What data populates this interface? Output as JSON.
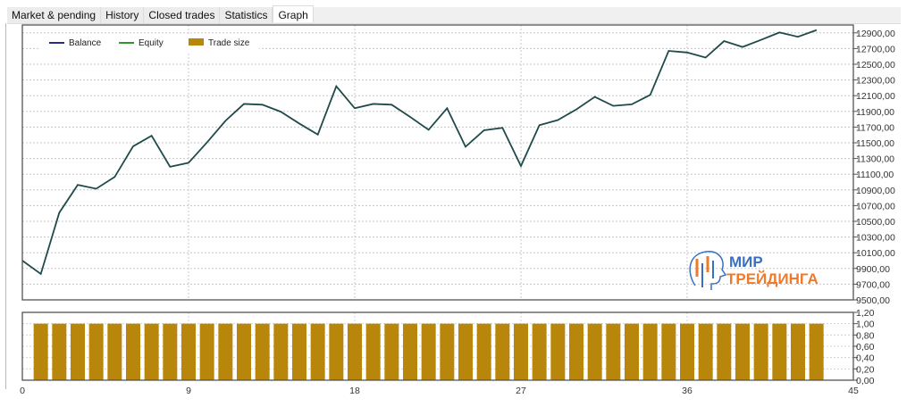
{
  "tabs": [
    {
      "label": "Market & pending"
    },
    {
      "label": "History"
    },
    {
      "label": "Closed trades"
    },
    {
      "label": "Statistics"
    },
    {
      "label": "Graph",
      "active": true
    }
  ],
  "logo": {
    "line1": "МИР",
    "line2": "ТРЕЙДИНГА"
  },
  "colors": {
    "line": "#1f4a4a",
    "balance": "#2a2a8c",
    "equity": "#2a9a2a",
    "bars": "#b8860b"
  },
  "chart_data": [
    {
      "type": "line",
      "legend": [
        {
          "name": "Balance",
          "icon": "line-marker"
        },
        {
          "name": "Equity",
          "icon": "line-marker"
        },
        {
          "name": "Trade size",
          "icon": "bar-swatch"
        }
      ],
      "legend_position": "top-left",
      "grid": true,
      "x_ticks": [
        "0",
        "9",
        "18",
        "27",
        "36",
        "45"
      ],
      "xlim": [
        0,
        45
      ],
      "ylim": [
        9500,
        13000
      ],
      "y_ticks": [
        "9500,00",
        "9700,00",
        "9900,00",
        "10100,00",
        "10300,00",
        "10500,00",
        "10700,00",
        "10900,00",
        "11100,00",
        "11300,00",
        "11500,00",
        "11700,00",
        "11900,00",
        "12100,00",
        "12300,00",
        "12500,00",
        "12700,00",
        "12900,00"
      ],
      "series": [
        {
          "name": "Balance",
          "values": [
            10000,
            9830,
            10610,
            10965,
            10915,
            11065,
            11455,
            11590,
            11195,
            11245,
            11505,
            11780,
            11995,
            11985,
            11895,
            11745,
            11605,
            12220,
            11940,
            11995,
            11985,
            11830,
            11665,
            11940,
            11450,
            11660,
            11690,
            11205,
            11725,
            11790,
            11925,
            12085,
            11970,
            11990,
            12110,
            12670,
            12650,
            12585,
            12795,
            12720,
            12810,
            12905,
            12850,
            12935
          ]
        }
      ]
    },
    {
      "type": "bar",
      "ylim": [
        0,
        1.2
      ],
      "y_ticks": [
        "0,00",
        "0,20",
        "0,40",
        "0,60",
        "0,80",
        "1,00",
        "1,20"
      ],
      "x": [
        1,
        2,
        3,
        4,
        5,
        6,
        7,
        8,
        9,
        10,
        11,
        12,
        13,
        14,
        15,
        16,
        17,
        18,
        19,
        20,
        21,
        22,
        23,
        24,
        25,
        26,
        27,
        28,
        29,
        30,
        31,
        32,
        33,
        34,
        35,
        36,
        37,
        38,
        39,
        40,
        41,
        42,
        43
      ],
      "values": [
        1,
        1,
        1,
        1,
        1,
        1,
        1,
        1,
        1,
        1,
        1,
        1,
        1,
        1,
        1,
        1,
        1,
        1,
        1,
        1,
        1,
        1,
        1,
        1,
        1,
        1,
        1,
        1,
        1,
        1,
        1,
        1,
        1,
        1,
        1,
        1,
        1,
        1,
        1,
        1,
        1,
        1,
        1
      ]
    }
  ]
}
